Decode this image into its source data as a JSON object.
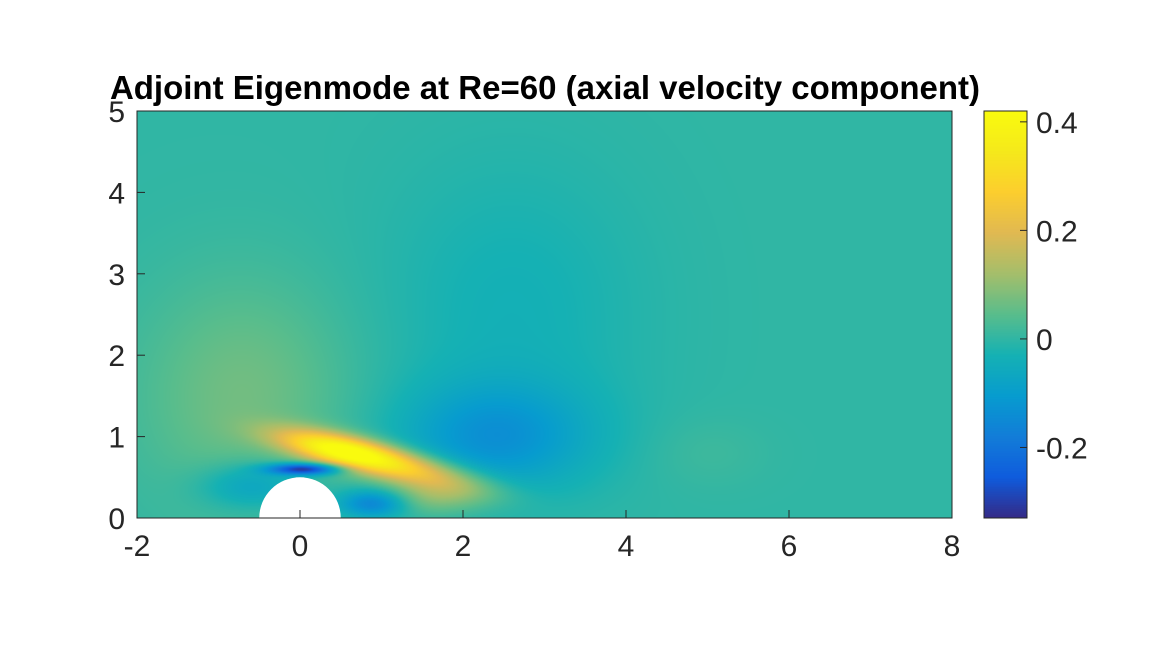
{
  "chart_data": {
    "type": "heatmap",
    "title": "Adjoint Eigenmode at Re=60 (axial velocity component)",
    "xlabel": "",
    "ylabel": "",
    "xlim": [
      -2,
      8
    ],
    "ylim": [
      0,
      5
    ],
    "x_ticks": [
      -2,
      0,
      2,
      4,
      6,
      8
    ],
    "y_ticks": [
      0,
      1,
      2,
      3,
      4,
      5
    ],
    "x_tick_labels": [
      "-2",
      "0",
      "2",
      "4",
      "6",
      "8"
    ],
    "y_tick_labels": [
      "0",
      "1",
      "2",
      "3",
      "4",
      "5"
    ],
    "colorbar": {
      "range": [
        -0.33,
        0.42
      ],
      "ticks": [
        -0.2,
        0,
        0.2,
        0.4
      ],
      "tick_labels": [
        "-0.2",
        "0",
        "0.2",
        "0.4"
      ],
      "colormap": "parula"
    },
    "background_value": 0.0,
    "obstacle": {
      "shape": "half-disk",
      "center": [
        0,
        0
      ],
      "radius": 0.5
    },
    "features": [
      {
        "name": "positive-lobe-upstream-diffuse",
        "x": -0.7,
        "y": 1.5,
        "value": 0.07,
        "sx": 0.9,
        "sy": 1.0
      },
      {
        "name": "positive-lobe-main",
        "x": 0.55,
        "y": 0.82,
        "value": 0.42,
        "sx": 0.55,
        "sy": 0.13,
        "angle_deg": -12
      },
      {
        "name": "positive-lobe-tail",
        "x": 1.5,
        "y": 0.55,
        "value": 0.2,
        "sx": 0.6,
        "sy": 0.15,
        "angle_deg": -12
      },
      {
        "name": "negative-band-over-cylinder",
        "x": 0.05,
        "y": 0.6,
        "value": -0.33,
        "sx": 0.3,
        "sy": 0.05
      },
      {
        "name": "negative-band-left",
        "x": -0.6,
        "y": 0.4,
        "value": -0.1,
        "sx": 0.45,
        "sy": 0.2
      },
      {
        "name": "negative-wake-lower",
        "x": 0.9,
        "y": 0.18,
        "value": -0.18,
        "sx": 0.3,
        "sy": 0.12
      },
      {
        "name": "positive-wake-lower",
        "x": 1.6,
        "y": 0.25,
        "value": 0.1,
        "sx": 0.5,
        "sy": 0.15
      },
      {
        "name": "negative-lobe-mid",
        "x": 2.4,
        "y": 1.0,
        "value": -0.12,
        "sx": 0.8,
        "sy": 0.45
      },
      {
        "name": "negative-lobe-upper-diffuse",
        "x": 2.6,
        "y": 2.5,
        "value": -0.035,
        "sx": 1.1,
        "sy": 1.3
      },
      {
        "name": "weak-positive-far",
        "x": 5.0,
        "y": 0.8,
        "value": 0.015,
        "sx": 0.5,
        "sy": 0.3
      }
    ]
  }
}
